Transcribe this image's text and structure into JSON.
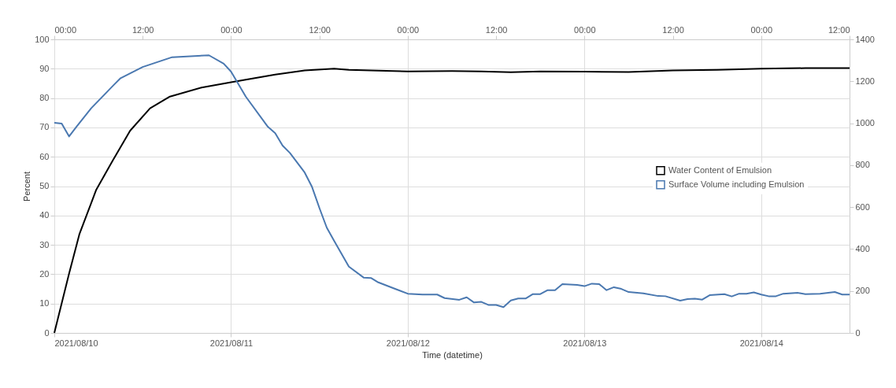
{
  "chart_data": {
    "type": "line",
    "xlabel": "Time (datetime)",
    "ylabel": "Percent",
    "xlim": [
      "2021-08-10T00:00",
      "2021-08-14T12:00"
    ],
    "xticks": [
      {
        "value": "2021-08-10T00:00",
        "label": "2021/08/10"
      },
      {
        "value": "2021-08-11T00:00",
        "label": "2021/08/11"
      },
      {
        "value": "2021-08-12T00:00",
        "label": "2021/08/12"
      },
      {
        "value": "2021-08-13T00:00",
        "label": "2021/08/13"
      },
      {
        "value": "2021-08-14T00:00",
        "label": "2021/08/14"
      }
    ],
    "x2lim": [
      "2021-08-10T00:00",
      "2021-08-14T12:00"
    ],
    "x2ticks": [
      {
        "value": "2021-08-10T00:00",
        "label": "00:00"
      },
      {
        "value": "2021-08-10T12:00",
        "label": "12:00"
      },
      {
        "value": "2021-08-11T00:00",
        "label": "00:00"
      },
      {
        "value": "2021-08-11T12:00",
        "label": "12:00"
      },
      {
        "value": "2021-08-12T00:00",
        "label": "00:00"
      },
      {
        "value": "2021-08-12T12:00",
        "label": "12:00"
      },
      {
        "value": "2021-08-13T00:00",
        "label": "00:00"
      },
      {
        "value": "2021-08-13T12:00",
        "label": "12:00"
      },
      {
        "value": "2021-08-14T00:00",
        "label": "00:00"
      },
      {
        "value": "2021-08-14T12:00",
        "label": "12:00"
      }
    ],
    "ylim": [
      0,
      100
    ],
    "yticks": [
      0,
      10,
      20,
      30,
      40,
      50,
      60,
      70,
      80,
      90,
      100
    ],
    "y2lim": [
      0,
      1400
    ],
    "y2ticks": [
      0,
      200,
      400,
      600,
      800,
      1000,
      1200,
      1400
    ],
    "grid": true,
    "legend": "right",
    "marker": "none",
    "line_style": "solid",
    "series": [
      {
        "name": "Water Content of Emulsion",
        "color": "#000000",
        "x": [
          "2021-08-10T00:00",
          "2021-08-10T02:00",
          "2021-08-10T03:24",
          "2021-08-10T05:42",
          "2021-08-10T07:54",
          "2021-08-10T10:18",
          "2021-08-10T13:00",
          "2021-08-10T15:42",
          "2021-08-10T20:00",
          "2021-08-11T00:00",
          "2021-08-11T06:00",
          "2021-08-11T10:00",
          "2021-08-11T14:00",
          "2021-08-11T16:00",
          "2021-08-11T19:00",
          "2021-08-12T00:00",
          "2021-08-12T06:00",
          "2021-08-12T10:00",
          "2021-08-12T14:00",
          "2021-08-12T18:00",
          "2021-08-13T00:00",
          "2021-08-13T06:00",
          "2021-08-13T12:00",
          "2021-08-13T18:00",
          "2021-08-14T00:00",
          "2021-08-14T06:00",
          "2021-08-14T12:00"
        ],
        "values": [
          0,
          20.2,
          33.6,
          48.8,
          58.6,
          68.9,
          76.5,
          80.5,
          83.6,
          85.4,
          88.0,
          89.4,
          90.0,
          89.6,
          89.4,
          89.1,
          89.2,
          89.1,
          88.8,
          89.1,
          89.0,
          88.9,
          89.4,
          89.6,
          90.0,
          90.2,
          90.2
        ]
      },
      {
        "name": "Surface Volume including Emulsion",
        "color": "#4a78b0",
        "axis": "y2",
        "x": [
          "2021-08-10T00:00",
          "2021-08-10T01:00",
          "2021-08-10T02:00",
          "2021-08-10T03:00",
          "2021-08-10T05:00",
          "2021-08-10T08:00",
          "2021-08-10T09:00",
          "2021-08-10T12:00",
          "2021-08-10T16:00",
          "2021-08-10T21:00",
          "2021-08-10T23:00",
          "2021-08-11T00:00",
          "2021-08-11T02:00",
          "2021-08-11T05:00",
          "2021-08-11T06:00",
          "2021-08-11T07:00",
          "2021-08-11T08:00",
          "2021-08-11T10:00",
          "2021-08-11T11:00",
          "2021-08-11T12:00",
          "2021-08-11T13:00",
          "2021-08-11T14:00",
          "2021-08-11T16:00",
          "2021-08-11T18:00",
          "2021-08-11T19:00",
          "2021-08-11T20:00",
          "2021-08-11T22:00",
          "2021-08-12T00:00",
          "2021-08-12T02:00",
          "2021-08-12T04:00",
          "2021-08-12T05:00",
          "2021-08-12T07:00",
          "2021-08-12T08:00",
          "2021-08-12T09:00",
          "2021-08-12T10:00",
          "2021-08-12T11:00",
          "2021-08-12T12:00",
          "2021-08-12T13:00",
          "2021-08-12T14:00",
          "2021-08-12T15:00",
          "2021-08-12T16:00",
          "2021-08-12T17:00",
          "2021-08-12T18:00",
          "2021-08-12T19:00",
          "2021-08-12T20:00",
          "2021-08-12T21:00",
          "2021-08-12T23:00",
          "2021-08-13T00:00",
          "2021-08-13T01:00",
          "2021-08-13T02:00",
          "2021-08-13T03:00",
          "2021-08-13T04:00",
          "2021-08-13T05:00",
          "2021-08-13T06:00",
          "2021-08-13T08:00",
          "2021-08-13T10:00",
          "2021-08-13T11:00",
          "2021-08-13T13:00",
          "2021-08-13T14:00",
          "2021-08-13T15:00",
          "2021-08-13T16:00",
          "2021-08-13T17:00",
          "2021-08-13T19:00",
          "2021-08-13T20:00",
          "2021-08-13T21:00",
          "2021-08-13T22:00",
          "2021-08-13T23:00",
          "2021-08-14T00:00",
          "2021-08-14T01:00",
          "2021-08-14T02:00",
          "2021-08-14T03:00",
          "2021-08-14T05:00",
          "2021-08-14T06:00",
          "2021-08-14T08:00",
          "2021-08-14T10:00",
          "2021-08-14T11:00",
          "2021-08-14T12:00"
        ],
        "values": [
          1002,
          998,
          937,
          983,
          1071,
          1180,
          1215,
          1268,
          1315,
          1324,
          1284,
          1246,
          1127,
          983,
          952,
          893,
          858,
          765,
          696,
          596,
          502,
          439,
          316,
          264,
          262,
          241,
          214,
          187,
          183,
          183,
          166,
          158,
          170,
          145,
          148,
          133,
          133,
          123,
          155,
          164,
          164,
          185,
          185,
          204,
          204,
          233,
          229,
          223,
          235,
          233,
          204,
          218,
          210,
          195,
          189,
          176,
          175,
          154,
          161,
          163,
          159,
          180,
          185,
          174,
          187,
          187,
          193,
          183,
          175,
          175,
          187,
          191,
          185,
          187,
          195,
          183,
          183
        ]
      }
    ]
  }
}
